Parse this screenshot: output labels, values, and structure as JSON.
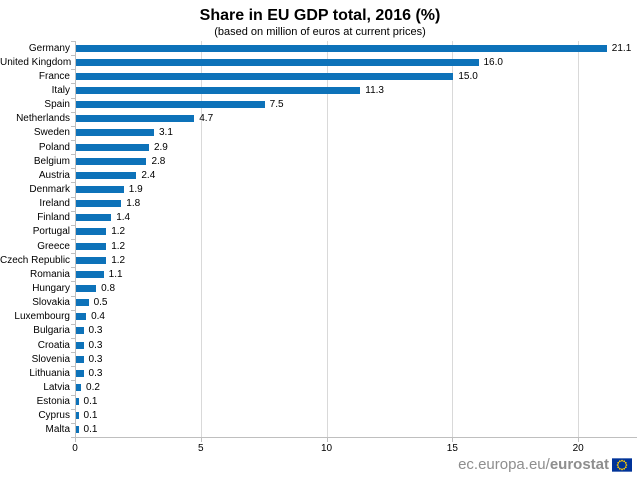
{
  "header": {
    "title": "Share in EU GDP total, 2016 (%)",
    "subtitle": "(based on million of euros at current prices)"
  },
  "chart_data": {
    "type": "bar",
    "orientation": "horizontal",
    "title": "Share in EU GDP total, 2016 (%)",
    "subtitle": "(based on million of euros at current prices)",
    "categories": [
      "Germany",
      "United Kingdom",
      "France",
      "Italy",
      "Spain",
      "Netherlands",
      "Sweden",
      "Poland",
      "Belgium",
      "Austria",
      "Denmark",
      "Ireland",
      "Finland",
      "Portugal",
      "Greece",
      "Czech Republic",
      "Romania",
      "Hungary",
      "Slovakia",
      "Luxembourg",
      "Bulgaria",
      "Croatia",
      "Slovenia",
      "Lithuania",
      "Latvia",
      "Estonia",
      "Cyprus",
      "Malta"
    ],
    "values": [
      21.1,
      16.0,
      15.0,
      11.3,
      7.5,
      4.7,
      3.1,
      2.9,
      2.8,
      2.4,
      1.9,
      1.8,
      1.4,
      1.2,
      1.2,
      1.2,
      1.1,
      0.8,
      0.5,
      0.4,
      0.3,
      0.3,
      0.3,
      0.3,
      0.2,
      0.1,
      0.1,
      0.1
    ],
    "value_labels": [
      "21.1",
      "16.0",
      "15.0",
      "11.3",
      "7.5",
      "4.7",
      "3.1",
      "2.9",
      "2.8",
      "2.4",
      "1.9",
      "1.8",
      "1.4",
      "1.2",
      "1.2",
      "1.2",
      "1.1",
      "0.8",
      "0.5",
      "0.4",
      "0.3",
      "0.3",
      "0.3",
      "0.3",
      "0.2",
      "0.1",
      "0.1",
      "0.1"
    ],
    "xlabel": "",
    "ylabel": "",
    "xlim": [
      0,
      22.3
    ],
    "xticks": [
      0,
      5,
      10,
      15,
      20
    ],
    "grid": "vertical-gridlines-on",
    "legend": "none",
    "bar_color": "#0d72b9",
    "gridline_color": "#d9d9d9",
    "axis_color": "#bfbfbf",
    "text_color": "#000000"
  },
  "footer": {
    "site_prefix": "ec.europa.eu/",
    "site_bold": "eurostat",
    "text_color": "#8e8e8e",
    "flag": {
      "icon": "eu-flag-icon",
      "blue": "#003399",
      "star_yellow": "#ffcc00"
    }
  }
}
